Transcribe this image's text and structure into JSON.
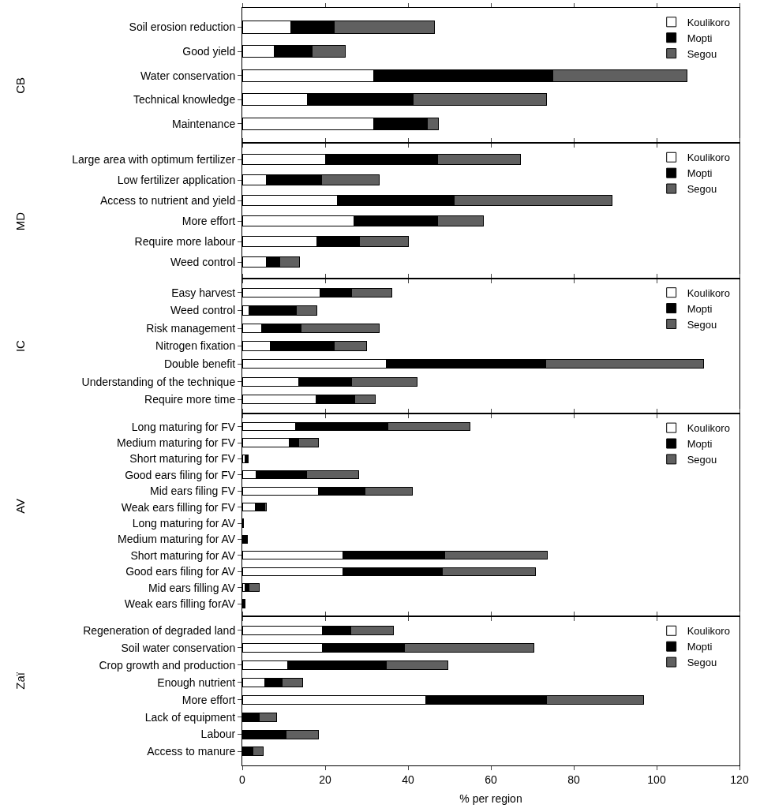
{
  "chart_data": [
    {
      "type": "bar",
      "orientation": "horizontal",
      "stacked": true,
      "ylabel": "CB",
      "categories": [
        "Soil erosion reduction",
        "Good yield",
        "Water conservation",
        "Technical knowledge",
        "Maintenance"
      ],
      "series": [
        {
          "name": "Koulikoro",
          "color": "#ffffff",
          "values": [
            11.8,
            7.8,
            31.8,
            15.8,
            31.8
          ]
        },
        {
          "name": "Mopti",
          "color": "#000000",
          "values": [
            10.3,
            9.0,
            43.2,
            25.5,
            12.9
          ]
        },
        {
          "name": "Segou",
          "color": "#606060",
          "values": [
            24.2,
            8.1,
            32.4,
            32.2,
            2.7
          ]
        }
      ],
      "xlim": [
        0,
        120
      ],
      "tick_labels": "y",
      "legend": "top right",
      "grid": false
    },
    {
      "type": "bar",
      "orientation": "horizontal",
      "stacked": true,
      "ylabel": "MD",
      "categories": [
        "Large area with optimum fertilizer",
        "Low fertilizer application",
        "Access to nutrient and yield",
        "More effort",
        "Require more labour",
        "Weed control"
      ],
      "series": [
        {
          "name": "Koulikoro",
          "color": "#ffffff",
          "values": [
            20.0,
            5.8,
            22.9,
            27.0,
            18.0,
            5.8
          ]
        },
        {
          "name": "Mopti",
          "color": "#000000",
          "values": [
            27.1,
            13.3,
            28.3,
            20.1,
            10.2,
            3.2
          ]
        },
        {
          "name": "Segou",
          "color": "#606060",
          "values": [
            20.0,
            14.0,
            38.0,
            11.0,
            11.8,
            4.9
          ]
        }
      ],
      "xlim": [
        0,
        120
      ],
      "tick_labels": "y",
      "legend": "top right",
      "grid": false
    },
    {
      "type": "bar",
      "orientation": "horizontal",
      "stacked": true,
      "ylabel": "IC",
      "categories": [
        "Easy harvest",
        "Weed control",
        "Risk management",
        "Nitrogen fixation",
        "Double benefit",
        "Understanding of the technique",
        "Require more time"
      ],
      "series": [
        {
          "name": "Koulikoro",
          "color": "#ffffff",
          "values": [
            18.7,
            1.6,
            4.7,
            6.7,
            34.8,
            13.7,
            17.9
          ]
        },
        {
          "name": "Mopti",
          "color": "#000000",
          "values": [
            7.6,
            11.5,
            9.4,
            15.5,
            38.5,
            12.6,
            9.2
          ]
        },
        {
          "name": "Segou",
          "color": "#606060",
          "values": [
            9.7,
            4.9,
            19.0,
            7.8,
            38.1,
            15.8,
            4.9
          ]
        }
      ],
      "xlim": [
        0,
        120
      ],
      "tick_labels": "y",
      "legend": "top right",
      "grid": false
    },
    {
      "type": "bar",
      "orientation": "horizontal",
      "stacked": true,
      "ylabel": "AV",
      "categories": [
        "Long maturing for FV",
        "Medium maturing for FV",
        "Short maturing for FV",
        "Good ears filing for FV",
        "Mid ears filing FV",
        "Weak ears filling for FV",
        "Long maturing for AV",
        "Medium maturing for AV",
        "Short maturing for AV",
        "Good ears filing for AV",
        "Mid ears filling AV",
        "Weak ears filling forAV"
      ],
      "series": [
        {
          "name": "Koulikoro",
          "color": "#ffffff",
          "values": [
            12.8,
            11.4,
            0.6,
            3.4,
            18.3,
            3.1,
            0,
            0,
            24.3,
            24.3,
            0.6,
            0
          ]
        },
        {
          "name": "Mopti",
          "color": "#000000",
          "values": [
            22.4,
            2.3,
            0.8,
            12.2,
            11.3,
            2.3,
            0.2,
            1.3,
            24.5,
            23.9,
            1.0,
            0.7
          ]
        },
        {
          "name": "Segou",
          "color": "#606060",
          "values": [
            19.8,
            4.6,
            0,
            12.4,
            11.5,
            0.5,
            0,
            0,
            24.9,
            22.6,
            2.5,
            0
          ]
        }
      ],
      "xlim": [
        0,
        120
      ],
      "tick_labels": "y",
      "legend": "top right",
      "grid": false
    },
    {
      "type": "bar",
      "orientation": "horizontal",
      "stacked": true,
      "ylabel": "Zaï",
      "xlabel": "% per region",
      "categories": [
        "Regeneration of degraded land",
        "Soil water conservation",
        "Crop growth and production",
        "Enough nutrient",
        "More effort",
        "Lack of equipment",
        "Labour",
        "Access to manure"
      ],
      "series": [
        {
          "name": "Koulikoro",
          "color": "#ffffff",
          "values": [
            19.4,
            19.4,
            11.0,
            5.5,
            44.3,
            0,
            0,
            0
          ]
        },
        {
          "name": "Mopti",
          "color": "#000000",
          "values": [
            6.7,
            19.8,
            23.8,
            4.1,
            29.1,
            4.0,
            10.6,
            2.6
          ]
        },
        {
          "name": "Segou",
          "color": "#606060",
          "values": [
            10.3,
            31.2,
            14.9,
            5.0,
            23.4,
            4.2,
            7.7,
            2.5
          ]
        }
      ],
      "xlim": [
        0,
        120
      ],
      "xticks": [
        0,
        20,
        40,
        60,
        80,
        100,
        120
      ],
      "legend": "top right",
      "grid": false
    }
  ]
}
